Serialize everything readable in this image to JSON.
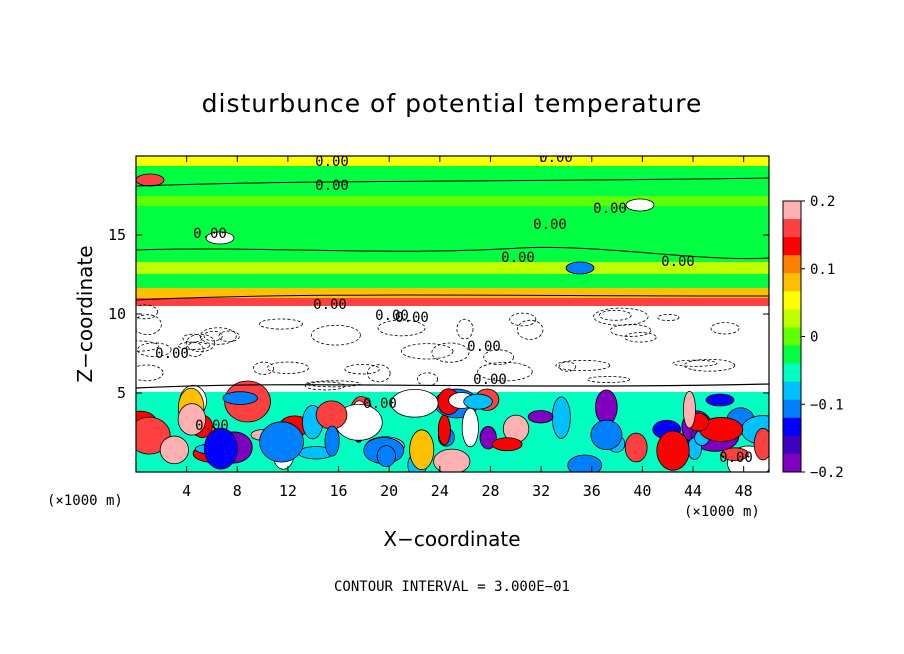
{
  "chart_data": {
    "type": "heatmap",
    "title": "disturbunce of potential temperature",
    "xlabel": "X−coordinate",
    "ylabel": "Z−coordinate",
    "x_unit": "(×1000 m)",
    "z_unit": "(×1000 m)",
    "footer": "CONTOUR INTERVAL = 3.000E−01",
    "xlim": [
      0,
      50
    ],
    "ylim": [
      0,
      20
    ],
    "x_ticks": [
      "4",
      "8",
      "12",
      "16",
      "20",
      "24",
      "28",
      "32",
      "36",
      "40",
      "44",
      "48"
    ],
    "y_ticks": [
      "5",
      "10",
      "15"
    ],
    "colorbar": {
      "range": [
        -0.2,
        0.2
      ],
      "tick_labels": [
        "0.2",
        "0.1",
        "0",
        "−0.1",
        "−0.2"
      ],
      "tick_values": [
        0.2,
        0.1,
        0,
        -0.1,
        -0.2
      ],
      "colors": [
        "#ffb0b0",
        "#ff4040",
        "#ff0000",
        "#ff8000",
        "#ffc000",
        "#ffff00",
        "#c0ff00",
        "#60ff00",
        "#00ff40",
        "#00ffc0",
        "#00c0ff",
        "#0080ff",
        "#0000ff",
        "#4000c0",
        "#8000c0"
      ]
    },
    "contour_labels": [
      "0.00",
      "0.00",
      "0.00",
      "0.00",
      "0.00",
      "0.00",
      "0.00",
      "0.00",
      "0.00",
      "0.00",
      "0.00",
      "0.00",
      "0.00",
      "0.00",
      "0.00",
      "0.00",
      "0.00"
    ],
    "grid": false
  }
}
